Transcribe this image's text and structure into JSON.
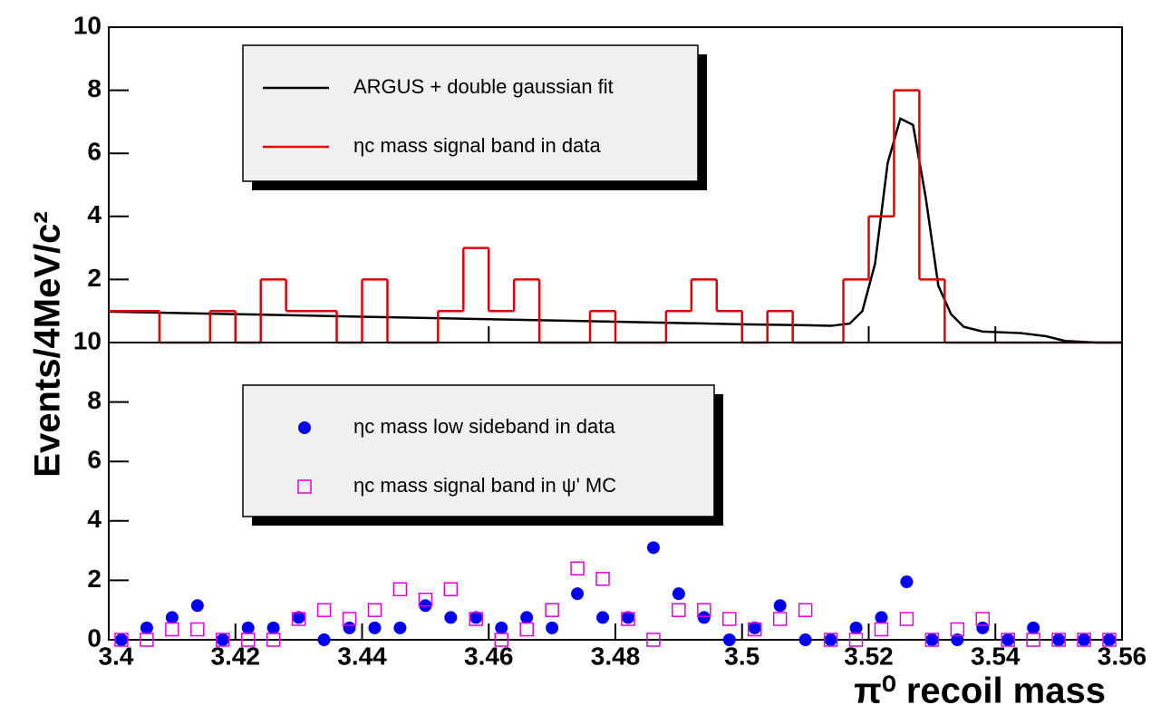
{
  "chart_data": [
    {
      "type": "histogram",
      "bins": [
        3.4,
        3.404,
        3.408,
        3.412,
        3.416,
        3.42,
        3.424,
        3.428,
        3.432,
        3.436,
        3.44,
        3.444,
        3.448,
        3.452,
        3.456,
        3.46,
        3.464,
        3.468,
        3.472,
        3.476,
        3.48,
        3.484,
        3.488,
        3.492,
        3.496,
        3.5,
        3.504,
        3.508,
        3.512,
        3.516,
        3.52,
        3.524,
        3.528,
        3.532,
        3.536,
        3.54,
        3.544,
        3.548,
        3.552,
        3.556,
        3.56
      ],
      "xlim": [
        3.4,
        3.56
      ],
      "ylim": [
        0,
        10
      ],
      "yticks": [
        2,
        4,
        6,
        8,
        10
      ],
      "series": [
        {
          "name": "ARGUS + double gaussian fit",
          "type": "line",
          "color": "#000000",
          "x": [
            3.4,
            3.42,
            3.44,
            3.46,
            3.48,
            3.5,
            3.51,
            3.514,
            3.517,
            3.519,
            3.521,
            3.523,
            3.525,
            3.527,
            3.529,
            3.531,
            3.533,
            3.535,
            3.538,
            3.544,
            3.548,
            3.551,
            3.556,
            3.56
          ],
          "values": [
            0.98,
            0.9,
            0.82,
            0.74,
            0.66,
            0.58,
            0.55,
            0.53,
            0.6,
            1.0,
            2.5,
            5.7,
            7.1,
            6.9,
            4.6,
            1.8,
            0.9,
            0.5,
            0.35,
            0.3,
            0.2,
            0.05,
            0,
            0
          ]
        },
        {
          "name": "ηc mass signal band in data",
          "color": "#e00000",
          "values": [
            1,
            1,
            0,
            0,
            1,
            0,
            2,
            1,
            1,
            0,
            2,
            0,
            0,
            1,
            3,
            1,
            2,
            0,
            0,
            1,
            0,
            0,
            1,
            2,
            1,
            0,
            1,
            0,
            0,
            2,
            4,
            8,
            2,
            0,
            0,
            0,
            0,
            0,
            0,
            0
          ]
        }
      ]
    },
    {
      "type": "scatter",
      "x": [
        3.402,
        3.406,
        3.41,
        3.414,
        3.418,
        3.422,
        3.426,
        3.43,
        3.434,
        3.438,
        3.442,
        3.446,
        3.45,
        3.454,
        3.458,
        3.462,
        3.466,
        3.47,
        3.474,
        3.478,
        3.482,
        3.486,
        3.49,
        3.494,
        3.498,
        3.502,
        3.506,
        3.51,
        3.514,
        3.518,
        3.522,
        3.526,
        3.53,
        3.534,
        3.538,
        3.542,
        3.546,
        3.55,
        3.554,
        3.558
      ],
      "xlim": [
        3.4,
        3.56
      ],
      "ylim": [
        0,
        10
      ],
      "xticks": [
        3.4,
        3.42,
        3.44,
        3.46,
        3.48,
        3.5,
        3.52,
        3.54,
        3.56
      ],
      "yticks": [
        0,
        2,
        4,
        6,
        8,
        10
      ],
      "xlabel": "π⁰ recoil mass",
      "ylabel": "Events/4MeV/c²",
      "series": [
        {
          "name": "ηc mass low sideband in data",
          "color": "#0000ee",
          "marker": "circle",
          "values": [
            0,
            0.4,
            0.75,
            1.15,
            0,
            0.4,
            0.4,
            0.75,
            0,
            0.4,
            0.4,
            0.4,
            1.15,
            0.75,
            0.75,
            0.4,
            0.75,
            0.4,
            1.55,
            0.75,
            0.75,
            3.1,
            1.55,
            0.75,
            0,
            0.4,
            1.15,
            0,
            0,
            0.4,
            0.75,
            1.95,
            0,
            0,
            0.4,
            0,
            0.4,
            0,
            0,
            0
          ]
        },
        {
          "name": "ηc mass signal band in ψ' MC",
          "color": "#e000e0",
          "marker": "square",
          "values": [
            0,
            0,
            0.35,
            0.35,
            0,
            0,
            0,
            0.7,
            1.0,
            0.7,
            1.0,
            1.7,
            1.35,
            1.7,
            0.7,
            0,
            0.35,
            1.0,
            2.4,
            2.05,
            0.7,
            0,
            1.0,
            1.0,
            0.7,
            0.35,
            0.7,
            1.0,
            0,
            0,
            0.35,
            0.7,
            0,
            0.35,
            0.7,
            0,
            0,
            0,
            0,
            0
          ]
        }
      ]
    }
  ]
}
